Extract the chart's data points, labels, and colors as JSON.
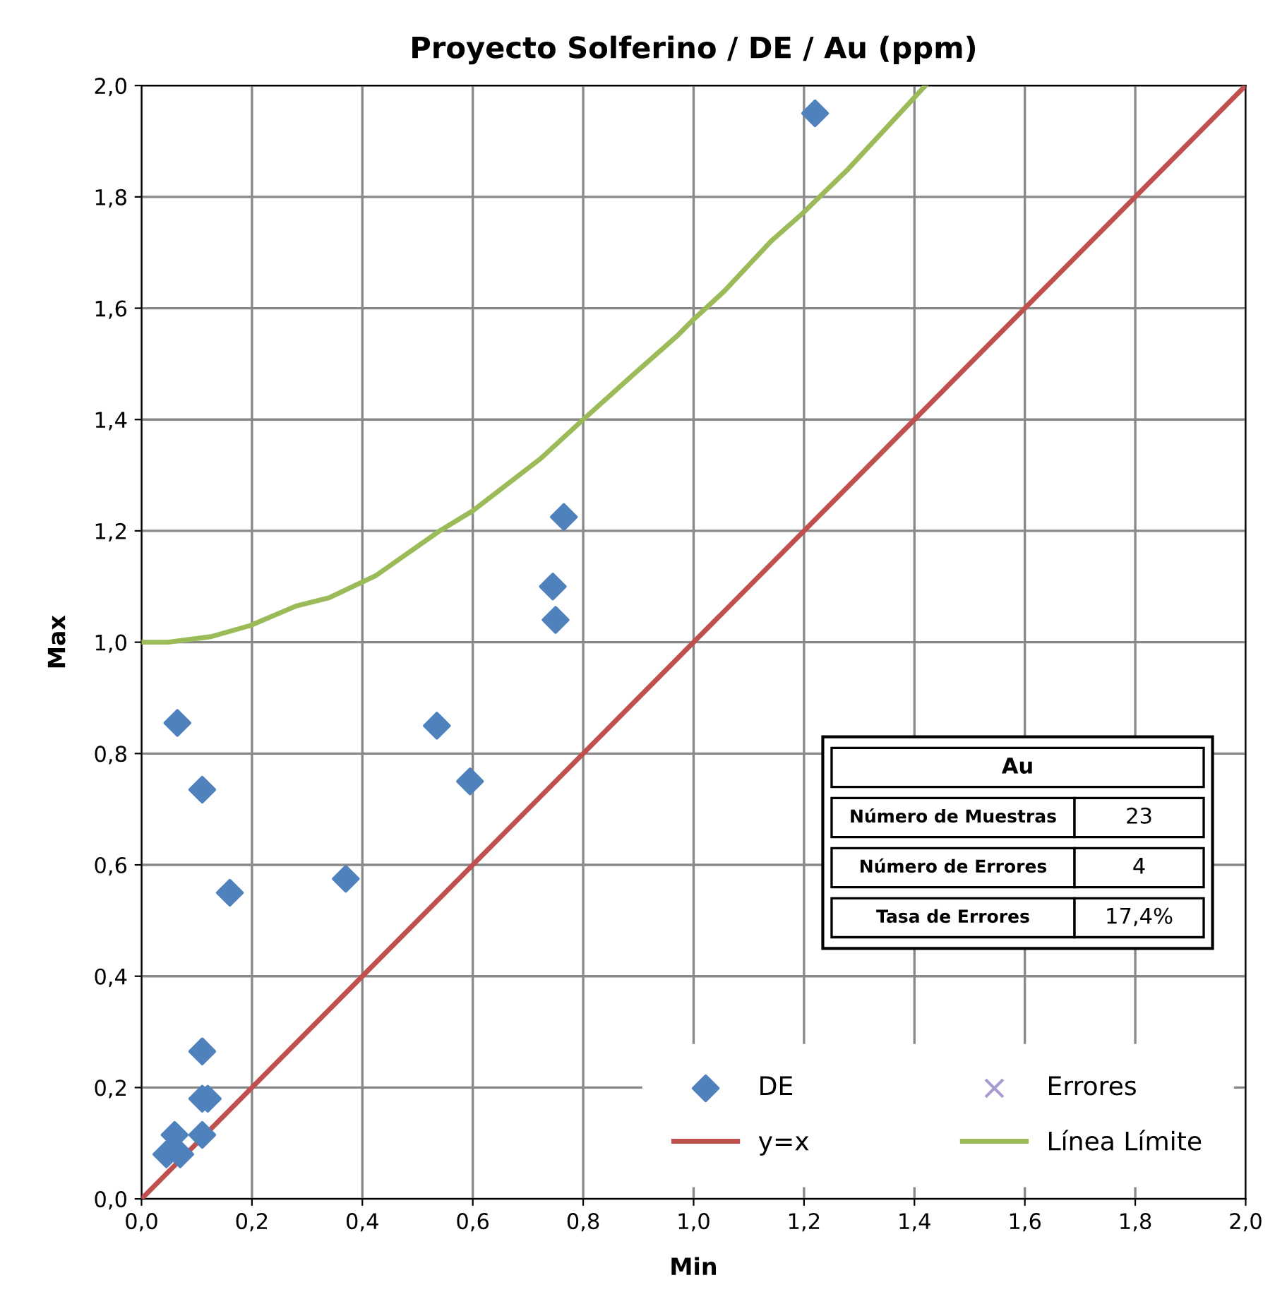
{
  "chart_data": {
    "type": "scatter",
    "title": "Proyecto Solferino / DE / Au (ppm)",
    "xlabel": "Min",
    "ylabel": "Max",
    "xlim": [
      0,
      2
    ],
    "ylim": [
      0,
      2
    ],
    "xticks": [
      {
        "value": 0,
        "label": "0,0"
      },
      {
        "value": 0.2,
        "label": "0,2"
      },
      {
        "value": 0.4,
        "label": "0,4"
      },
      {
        "value": 0.6,
        "label": "0,6"
      },
      {
        "value": 0.8,
        "label": "0,8"
      },
      {
        "value": 1.0,
        "label": "1,0"
      },
      {
        "value": 1.2,
        "label": "1,2"
      },
      {
        "value": 1.4,
        "label": "1,4"
      },
      {
        "value": 1.6,
        "label": "1,6"
      },
      {
        "value": 1.8,
        "label": "1,8"
      },
      {
        "value": 2.0,
        "label": "2,0"
      }
    ],
    "yticks": [
      {
        "value": 0,
        "label": "0,0"
      },
      {
        "value": 0.2,
        "label": "0,2"
      },
      {
        "value": 0.4,
        "label": "0,4"
      },
      {
        "value": 0.6,
        "label": "0,6"
      },
      {
        "value": 0.8,
        "label": "0,8"
      },
      {
        "value": 1.0,
        "label": "1,0"
      },
      {
        "value": 1.2,
        "label": "1,2"
      },
      {
        "value": 1.4,
        "label": "1,4"
      },
      {
        "value": 1.6,
        "label": "1,6"
      },
      {
        "value": 1.8,
        "label": "1,8"
      },
      {
        "value": 2.0,
        "label": "2,0"
      }
    ],
    "grid": true,
    "legend": "bottom right",
    "series": [
      {
        "name": "DE",
        "marker": "diamond",
        "color": "#4f81bd",
        "x": [
          1.22,
          0.765,
          0.745,
          0.75,
          0.065,
          0.535,
          0.11,
          0.595,
          0.16,
          0.37,
          0.11,
          0.11,
          0.12,
          0.06,
          0.11,
          0.045,
          0.07
        ],
        "values": [
          1.95,
          1.225,
          1.1,
          1.04,
          0.855,
          0.85,
          0.735,
          0.75,
          0.55,
          0.575,
          0.265,
          0.18,
          0.18,
          0.115,
          0.115,
          0.08,
          0.08
        ]
      },
      {
        "name": "y=x",
        "type": "line",
        "line_style": "solid",
        "color": "#c0504d",
        "x": [
          0,
          2
        ],
        "values": [
          0,
          2
        ]
      },
      {
        "name": "Errores",
        "type": "scatter",
        "marker": "cross",
        "color": "#a99bcf"
      },
      {
        "name": "Línea Límite",
        "type": "line",
        "line_style": "solid",
        "color": "#9bbb59",
        "x": [
          0,
          0.048,
          0.126,
          0.197,
          0.28,
          0.34,
          0.425,
          0.54,
          0.6,
          0.723,
          0.8,
          0.89,
          0.97,
          1.0,
          1.055,
          1.14,
          1.197,
          1.28,
          1.35,
          1.42
        ],
        "values": [
          1.0,
          1.0,
          1.01,
          1.03,
          1.065,
          1.08,
          1.12,
          1.2,
          1.236,
          1.33,
          1.4,
          1.48,
          1.55,
          1.58,
          1.63,
          1.72,
          1.77,
          1.85,
          1.925,
          2.0
        ]
      }
    ],
    "annotations": [
      "Au",
      "Número de Muestras",
      "23",
      "Número de Errores",
      "4",
      "Tasa de Errores",
      "17,4%"
    ]
  }
}
